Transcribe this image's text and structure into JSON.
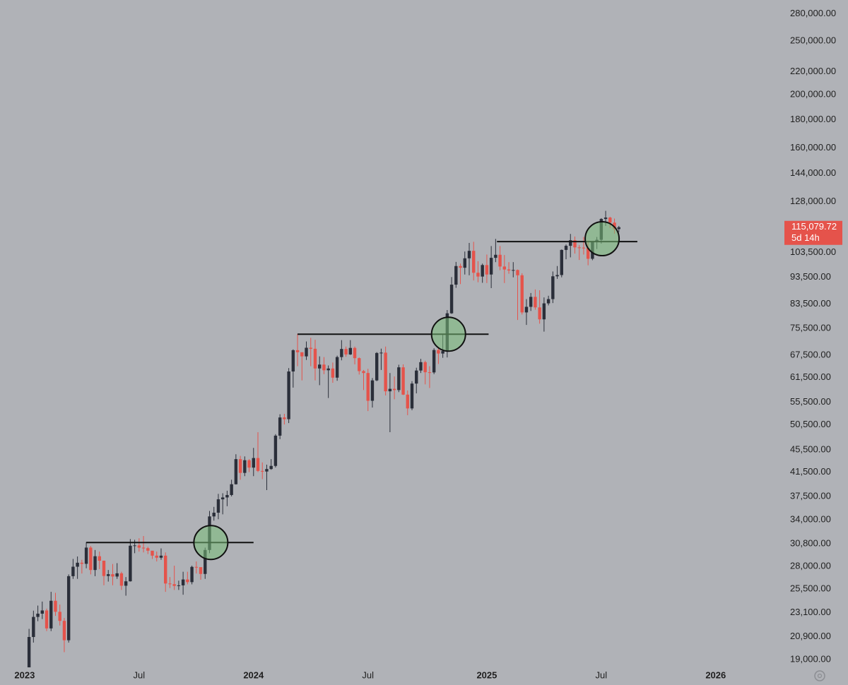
{
  "chart_data": {
    "type": "candlestick",
    "log_scale": true,
    "up_color": "#2a2e39",
    "down_color": "#e5534b",
    "xlim": [
      -6.6,
      170
    ],
    "xticks": [
      {
        "value": -1,
        "label": "2023"
      },
      {
        "value": 25,
        "label": "Jul"
      },
      {
        "value": 51,
        "label": "2024"
      },
      {
        "value": 77,
        "label": "Jul"
      },
      {
        "value": 104,
        "label": "2025"
      },
      {
        "value": 130,
        "label": "Jul"
      },
      {
        "value": 156,
        "label": "2026"
      }
    ],
    "ylim": [
      18400,
      296500
    ],
    "yticks": [
      {
        "value": 280000,
        "label": "280,000.00"
      },
      {
        "value": 250000,
        "label": "250,000.00"
      },
      {
        "value": 220000,
        "label": "220,000.00"
      },
      {
        "value": 200000,
        "label": "200,000.00"
      },
      {
        "value": 180000,
        "label": "180,000.00"
      },
      {
        "value": 160000,
        "label": "160,000.00"
      },
      {
        "value": 144000,
        "label": "144,000.00"
      },
      {
        "value": 128000,
        "label": "128,000.00"
      },
      {
        "value": 103500,
        "label": "103,500.00"
      },
      {
        "value": 93500,
        "label": "93,500.00"
      },
      {
        "value": 83500,
        "label": "83,500.00"
      },
      {
        "value": 75500,
        "label": "75,500.00"
      },
      {
        "value": 67500,
        "label": "67,500.00"
      },
      {
        "value": 61500,
        "label": "61,500.00"
      },
      {
        "value": 55500,
        "label": "55,500.00"
      },
      {
        "value": 50500,
        "label": "50,500.00"
      },
      {
        "value": 45500,
        "label": "45,500.00"
      },
      {
        "value": 41500,
        "label": "41,500.00"
      },
      {
        "value": 37500,
        "label": "37,500.00"
      },
      {
        "value": 34000,
        "label": "34,000.00"
      },
      {
        "value": 30800,
        "label": "30,800.00"
      },
      {
        "value": 28000,
        "label": "28,000.00"
      },
      {
        "value": 25500,
        "label": "25,500.00"
      },
      {
        "value": 23100,
        "label": "23,100.00"
      },
      {
        "value": 20900,
        "label": "20,900.00"
      },
      {
        "value": 19000,
        "label": "19,000.00"
      }
    ],
    "open": [
      17130,
      20880,
      22700,
      23010,
      23320,
      21640,
      24280,
      23190,
      22330,
      20600,
      26900,
      27980,
      28450,
      28320,
      30300,
      27600,
      29230,
      28690,
      26920,
      27120,
      26860,
      27220,
      25850,
      26330,
      30540,
      30580,
      30290,
      30230,
      29910,
      29300,
      29050,
      29300,
      26090,
      26020,
      25830,
      25890,
      26530,
      26240,
      27960,
      27930,
      27150,
      30000,
      34500,
      35040,
      37050,
      37340,
      37720,
      39450,
      43800,
      41360,
      43600,
      42280,
      44000,
      41700,
      41600,
      42030,
      42580,
      48300,
      52100,
      51730,
      63100,
      68950,
      68370,
      67200,
      69650,
      69360,
      63900,
      64940,
      63420,
      63890,
      61500,
      67000,
      69300,
      67740,
      69600,
      66700,
      63200,
      62700,
      55850,
      60800,
      68150,
      68250,
      58100,
      58700,
      58400,
      64200,
      57300,
      54100,
      60000,
      63350,
      65600,
      62900,
      62850,
      69000,
      68000,
      68700,
      80400,
      90600,
      97900,
      97200,
      101100,
      104300,
      95200,
      93700,
      98300,
      94500,
      101300,
      102600,
      97700,
      96500,
      96100,
      96300,
      94200,
      80700,
      82600,
      86100,
      82400,
      78400,
      83800,
      85300,
      93800,
      94300,
      104700,
      106500,
      109000,
      105800,
      105700,
      105600,
      100900,
      108400,
      109200,
      119100,
      119800,
      117300,
      114200
    ],
    "high": [
      21600,
      23300,
      23800,
      24200,
      23500,
      25200,
      25100,
      23900,
      22600,
      27100,
      28900,
      29200,
      28800,
      31000,
      30500,
      30000,
      29800,
      28700,
      27600,
      28300,
      28400,
      27400,
      26800,
      31400,
      31300,
      31500,
      31800,
      30400,
      29900,
      29800,
      30200,
      29700,
      26800,
      28100,
      26400,
      27400,
      27400,
      28100,
      28600,
      27900,
      30300,
      35300,
      35900,
      37900,
      38000,
      38400,
      40200,
      44700,
      44400,
      44300,
      43800,
      45900,
      49000,
      43200,
      42800,
      43800,
      48600,
      52800,
      52900,
      64000,
      69200,
      73800,
      68200,
      71500,
      72600,
      72000,
      67200,
      67000,
      64700,
      65500,
      67400,
      71900,
      70000,
      71900,
      70000,
      66900,
      63500,
      63800,
      61400,
      68400,
      69400,
      70000,
      62700,
      61800,
      64900,
      65000,
      58300,
      60600,
      64100,
      66500,
      66000,
      64500,
      69500,
      69500,
      73600,
      81500,
      93500,
      99600,
      98900,
      104000,
      107800,
      108300,
      99900,
      98900,
      102700,
      106400,
      109600,
      106400,
      102500,
      99500,
      99500,
      96500,
      95000,
      85300,
      87500,
      88800,
      88500,
      85900,
      86500,
      95700,
      97900,
      104900,
      107100,
      111900,
      110700,
      106800,
      110500,
      108900,
      108500,
      110500,
      119500,
      123200,
      120200,
      119300,
      115700
    ],
    "low": [
      16800,
      20400,
      22300,
      22500,
      21400,
      21400,
      22800,
      21900,
      19600,
      20400,
      26600,
      26600,
      27200,
      27800,
      27100,
      26900,
      27700,
      25900,
      26300,
      25900,
      26600,
      25400,
      24800,
      26300,
      29600,
      29800,
      29700,
      29500,
      28900,
      28600,
      28800,
      25200,
      25600,
      25400,
      25400,
      24900,
      26000,
      26000,
      27200,
      26500,
      26600,
      29600,
      33900,
      34100,
      34800,
      36000,
      37500,
      39400,
      40200,
      40800,
      41500,
      40800,
      41500,
      40300,
      38500,
      41900,
      42300,
      47600,
      50600,
      50900,
      59000,
      64500,
      60800,
      66200,
      64500,
      60800,
      59600,
      62400,
      56500,
      60200,
      60700,
      66100,
      67100,
      67600,
      65000,
      62300,
      58400,
      53500,
      54300,
      60600,
      63500,
      57100,
      49000,
      56200,
      57900,
      57200,
      52600,
      53700,
      57600,
      62700,
      59800,
      58900,
      62400,
      65100,
      66800,
      66900,
      80200,
      89400,
      90800,
      94500,
      94200,
      92200,
      91500,
      91300,
      91200,
      89300,
      99500,
      96200,
      91200,
      94800,
      93400,
      78200,
      80000,
      76600,
      81200,
      81600,
      77000,
      74500,
      83100,
      83900,
      92800,
      93400,
      100700,
      101500,
      103100,
      100400,
      102700,
      98200,
      100300,
      105100,
      107500,
      115700,
      114700,
      112000,
      112700
    ],
    "close": [
      20880,
      22700,
      23010,
      23320,
      21640,
      24280,
      23190,
      22330,
      20600,
      26900,
      27980,
      28450,
      28320,
      30300,
      27600,
      29230,
      28690,
      26920,
      27120,
      26860,
      27220,
      25850,
      26330,
      30540,
      30580,
      30290,
      30230,
      29910,
      29300,
      29050,
      29300,
      26090,
      26020,
      25830,
      25890,
      26530,
      26240,
      27960,
      27930,
      27150,
      30000,
      34500,
      35040,
      37050,
      37340,
      37720,
      39450,
      43800,
      41360,
      43600,
      42280,
      44000,
      41700,
      41600,
      42030,
      42580,
      48300,
      52100,
      51730,
      63100,
      68950,
      68370,
      67200,
      69650,
      69360,
      63900,
      64940,
      63420,
      63890,
      61500,
      67000,
      69300,
      67740,
      69600,
      66700,
      63200,
      62700,
      55850,
      60800,
      68150,
      68250,
      58100,
      58700,
      58400,
      64200,
      57300,
      54100,
      60000,
      63350,
      65600,
      62900,
      62850,
      69000,
      68000,
      68700,
      80400,
      90600,
      97900,
      97200,
      101100,
      104300,
      95200,
      93700,
      98300,
      94500,
      101300,
      102600,
      97700,
      96500,
      96100,
      96300,
      94200,
      80700,
      82600,
      86100,
      82400,
      78400,
      83800,
      85300,
      93800,
      94300,
      104700,
      106500,
      109000,
      105800,
      105700,
      105600,
      100900,
      108400,
      109200,
      119100,
      119800,
      117300,
      114200,
      115079.72
    ],
    "levels": [
      {
        "value": 30950,
        "x": [
          13,
          51
        ]
      },
      {
        "value": 73700,
        "x": [
          61,
          104.4
        ]
      },
      {
        "value": 108400,
        "x": [
          106.3,
          138.2
        ]
      }
    ],
    "circles": [
      {
        "x": 41.3,
        "value": 30950
      },
      {
        "x": 95.3,
        "value": 73700
      },
      {
        "x": 130.2,
        "value": 109700
      }
    ],
    "last_price_label": "115,079.72",
    "countdown": "5d 14h"
  }
}
